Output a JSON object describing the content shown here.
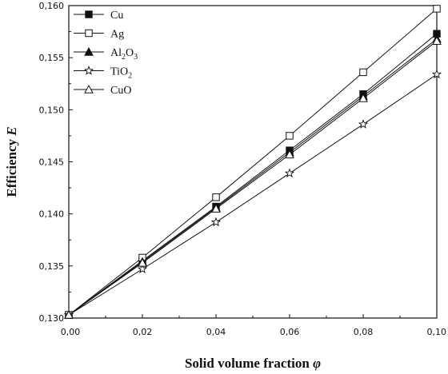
{
  "chart_data": {
    "type": "line",
    "xlabel": "Solid volume fraction",
    "xlabel_symbol": "φ",
    "ylabel": "Efficiency",
    "ylabel_symbol": "E",
    "xlim": [
      0.0,
      0.1
    ],
    "ylim": [
      0.13,
      0.16
    ],
    "x_ticks": [
      "0,00",
      "0,02",
      "0,04",
      "0,06",
      "0,08",
      "0,10"
    ],
    "y_ticks": [
      "0,130",
      "0,135",
      "0,140",
      "0,145",
      "0,150",
      "0,155",
      "0,160"
    ],
    "x": [
      0.0,
      0.02,
      0.04,
      0.06,
      0.08,
      0.1
    ],
    "grid": false,
    "legend_position": "top-left",
    "series": [
      {
        "name": "Cu",
        "label_parts": [
          [
            "Cu",
            ""
          ]
        ],
        "marker": "square-filled",
        "values": [
          0.1303,
          0.1355,
          0.1407,
          0.1461,
          0.1515,
          0.1573
        ]
      },
      {
        "name": "Ag",
        "label_parts": [
          [
            "Ag",
            ""
          ]
        ],
        "marker": "square-open",
        "values": [
          0.1303,
          0.1358,
          0.1416,
          0.1475,
          0.1536,
          0.1597
        ]
      },
      {
        "name": "Al2O3",
        "label_parts": [
          [
            "Al",
            ""
          ],
          [
            "2",
            "sub"
          ],
          [
            "O",
            ""
          ],
          [
            "3",
            "sub"
          ]
        ],
        "marker": "triangle-filled",
        "values": [
          0.1303,
          0.1354,
          0.1406,
          0.1459,
          0.1513,
          0.1568
        ]
      },
      {
        "name": "TiO2",
        "label_parts": [
          [
            "TiO",
            ""
          ],
          [
            "2",
            "sub"
          ]
        ],
        "marker": "star-open",
        "values": [
          0.1303,
          0.1347,
          0.1392,
          0.1439,
          0.1486,
          0.1534
        ]
      },
      {
        "name": "CuO",
        "label_parts": [
          [
            "CuO",
            ""
          ]
        ],
        "marker": "triangle-open",
        "values": [
          0.1303,
          0.1353,
          0.1405,
          0.1457,
          0.1511,
          0.1566
        ]
      }
    ]
  }
}
